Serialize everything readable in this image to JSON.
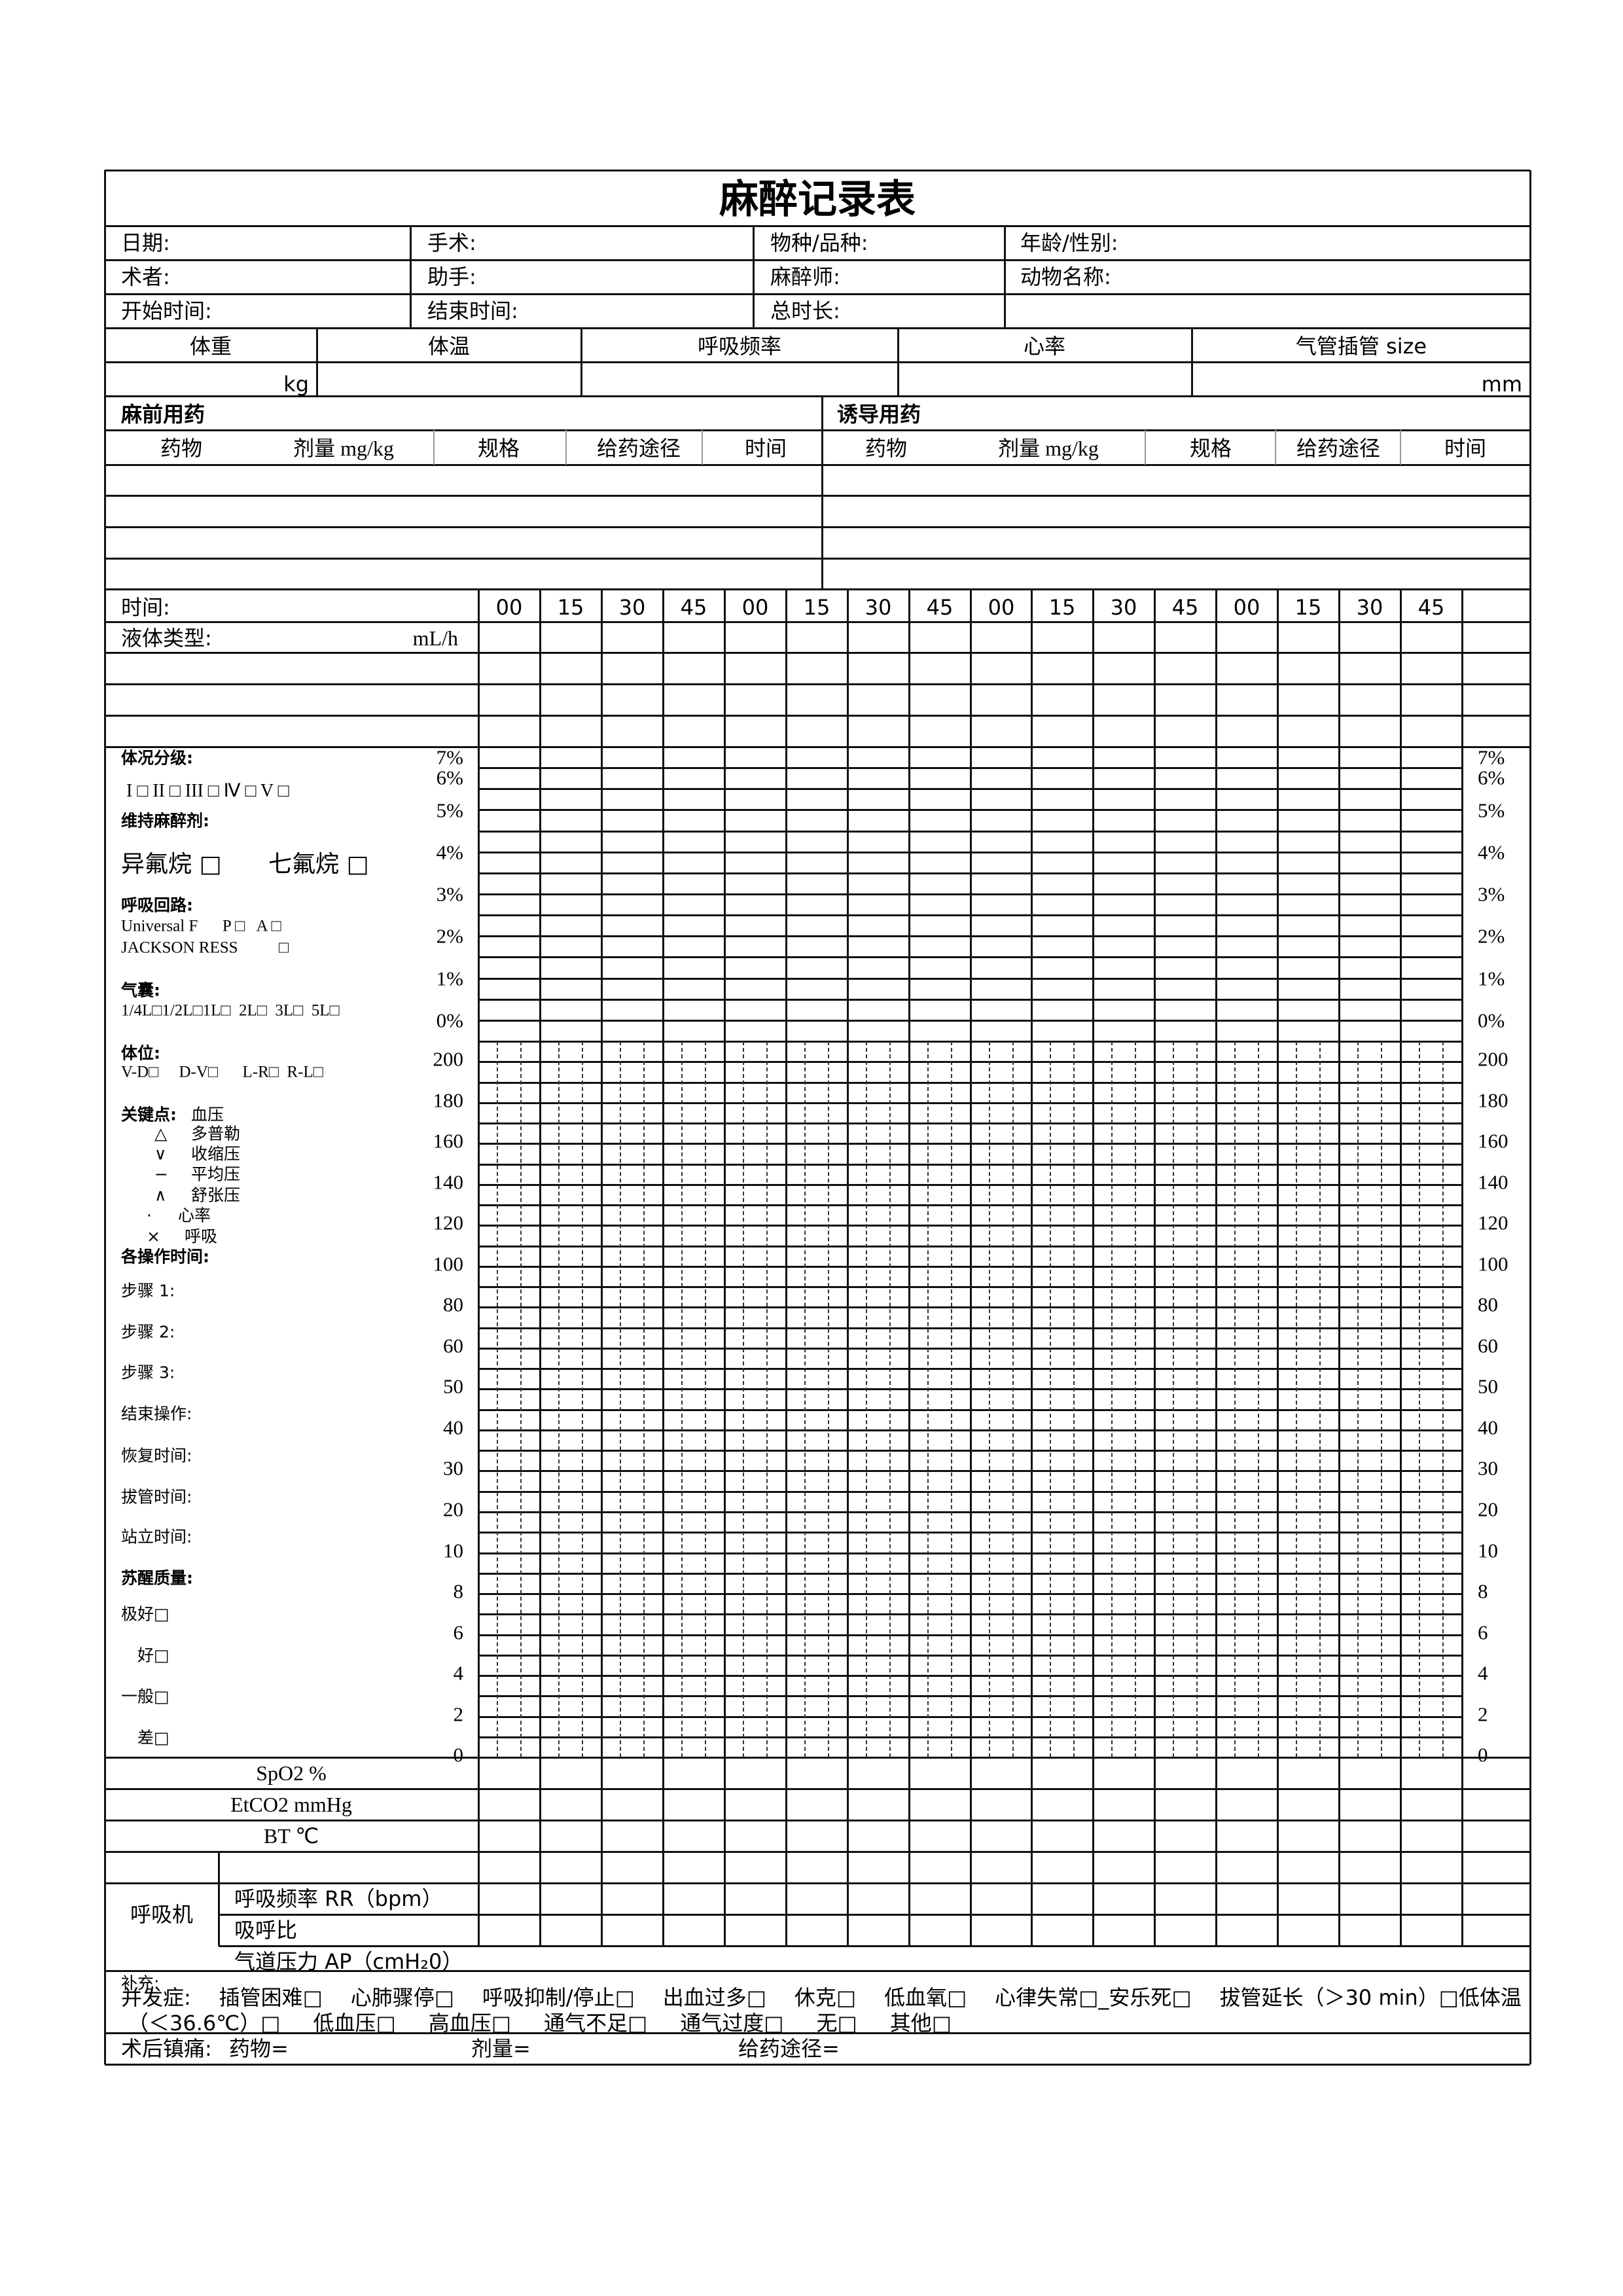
{
  "title": "麻醉记录表",
  "info": {
    "row1": [
      "日期:",
      "手术:",
      "物种/品种:",
      "年龄/性别:"
    ],
    "row2": [
      "术者:",
      "助手:",
      "麻醉师:",
      "动物名称:"
    ],
    "row3": [
      "开始时间:",
      "结束时间:",
      "总时长:"
    ]
  },
  "vitals": {
    "headers": [
      "体重",
      "体温",
      "呼吸频率",
      "心率",
      "气管插管 size"
    ],
    "weight_unit": "kg",
    "tube_unit": "mm"
  },
  "premed": {
    "title": "麻前用药",
    "headers": [
      "药物",
      "剂量 mg/kg",
      "规格",
      "给药途径",
      "时间"
    ]
  },
  "induction": {
    "title": "诱导用药",
    "headers": [
      "药物",
      "剂量 mg/kg",
      "规格",
      "给药途径",
      "时间"
    ]
  },
  "timeline": {
    "label": "时间:",
    "times": [
      "00",
      "15",
      "30",
      "45",
      "00",
      "15",
      "30",
      "45",
      "00",
      "15",
      "30",
      "45",
      "00",
      "15",
      "30",
      "45"
    ],
    "fluid_label": "液体类型:",
    "fluid_unit": "mL/h"
  },
  "agent_axis": [
    "7%",
    "6%",
    "5%",
    "4%",
    "3%",
    "2%",
    "1%",
    "0%"
  ],
  "vital_axis": [
    "200",
    "180",
    "160",
    "140",
    "120",
    "100",
    "80",
    "60",
    "50",
    "40",
    "30",
    "20",
    "10",
    "8",
    "6",
    "4",
    "2",
    "0"
  ],
  "left_panel": {
    "asa_title": "体况分级:",
    "asa_options": "I □   II □   III □   Ⅳ □   V □",
    "maint_title": "维持麻醉剂:",
    "iso": "异氟烷 □",
    "sevo": "七氟烷 □",
    "circuit_title": "呼吸回路:",
    "circuit_1": "Universal F      P □   A □",
    "circuit_2": "JACKSON RESS          □",
    "bag_title": "气囊:",
    "bag_options": "1/4L□1/2L□1L□  2L□  3L□  5L□",
    "position_title": "体位:",
    "position_options": "V-D□     D-V□      L-R□  R-L□",
    "keypoints_title": "关键点:",
    "keypoints_bp": "血压",
    "legend": [
      {
        "symbol": "△",
        "label": "多普勒"
      },
      {
        "symbol": "∨",
        "label": "收缩压"
      },
      {
        "symbol": "−",
        "label": "平均压"
      },
      {
        "symbol": "∧",
        "label": "舒张压"
      },
      {
        "symbol": "·",
        "label": "心率"
      },
      {
        "symbol": "×",
        "label": "呼吸"
      }
    ],
    "ops_title": "各操作时间:",
    "ops": [
      "步骤 1:",
      "步骤 2:",
      "步骤 3:",
      "结束操作:",
      "恢复时间:",
      "拔管时间:",
      "站立时间:"
    ],
    "recovery_title": "苏醒质量:",
    "recovery": [
      "极好□",
      "好□",
      "一般□",
      "差□"
    ]
  },
  "monitor_rows": {
    "spo2": "SpO2 %",
    "etco2": "EtCO2 mmHg",
    "bt": "BT ℃",
    "ventilator": "呼吸机",
    "rr": "呼吸频率 RR（bpm）",
    "ie": "吸呼比",
    "ap": "气道压力 AP（cmH₂0）"
  },
  "supplement": "补充:",
  "complications": {
    "line1": [
      "并发症:",
      "插管困难□",
      "心肺骤停□",
      "呼吸抑制/停止□",
      "出血过多□",
      "休克□",
      "低血氧□",
      "心律失常□_安乐死□",
      "拔管延长（＞30 min）□低体温"
    ],
    "line2": [
      "（＜36.6℃）□",
      "低血压□",
      "高血压□",
      "通气不足□",
      "通气过度□",
      "无□",
      "其他□"
    ]
  },
  "analgesia": {
    "label": "术后镇痛:",
    "drug": "药物=",
    "dose": "剂量=",
    "route": "给药途径="
  }
}
